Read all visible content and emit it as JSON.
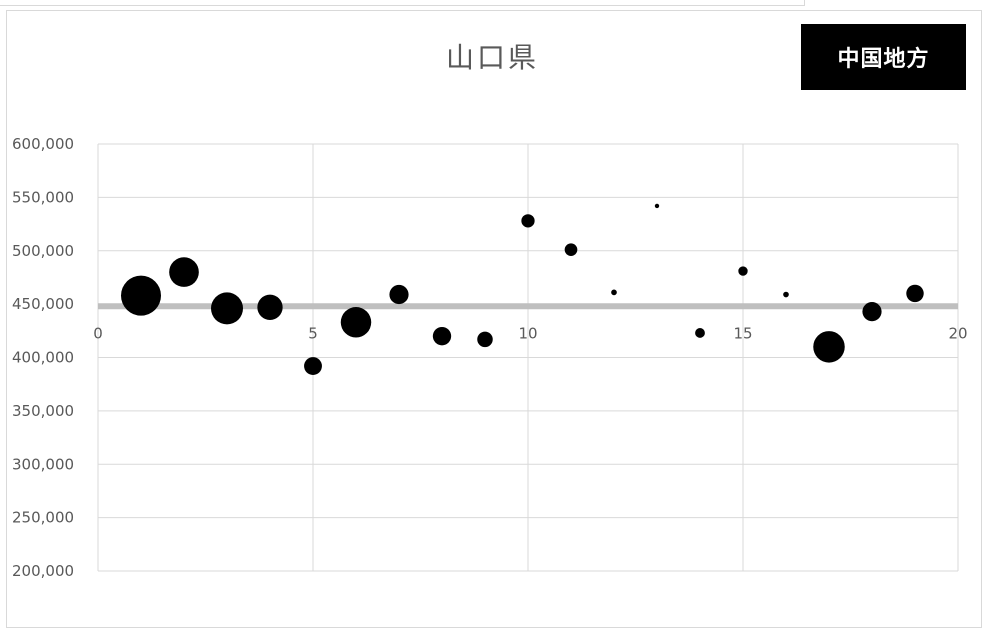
{
  "chart_data": {
    "type": "scatter",
    "variant": "bubble",
    "title": "山口県",
    "xlabel": "",
    "ylabel": "",
    "xlim": [
      0,
      20
    ],
    "ylim": [
      200000,
      600000
    ],
    "x_ticks": [
      0,
      5,
      10,
      15,
      20
    ],
    "x_tick_labels": [
      "0",
      "5",
      "10",
      "15",
      "20"
    ],
    "y_ticks": [
      200000,
      250000,
      300000,
      350000,
      400000,
      450000,
      500000,
      550000,
      600000
    ],
    "y_tick_labels": [
      "200,000",
      "250,000",
      "300,000",
      "350,000",
      "400,000",
      "450,000",
      "500,000",
      "550,000",
      "600,000"
    ],
    "grid": true,
    "reference_line": {
      "y": 448000,
      "color": "#bfbfbf"
    },
    "marker_color": "#000000",
    "series": [
      {
        "points": [
          {
            "x": 1,
            "y": 458000,
            "size": 100
          },
          {
            "x": 2,
            "y": 480000,
            "size": 55
          },
          {
            "x": 3,
            "y": 446000,
            "size": 64
          },
          {
            "x": 4,
            "y": 447000,
            "size": 40
          },
          {
            "x": 5,
            "y": 392000,
            "size": 20
          },
          {
            "x": 6,
            "y": 433000,
            "size": 58
          },
          {
            "x": 7,
            "y": 459000,
            "size": 23
          },
          {
            "x": 8,
            "y": 420000,
            "size": 21
          },
          {
            "x": 9,
            "y": 417000,
            "size": 15
          },
          {
            "x": 10,
            "y": 528000,
            "size": 11
          },
          {
            "x": 11,
            "y": 501000,
            "size": 10
          },
          {
            "x": 12,
            "y": 461000,
            "size": 2
          },
          {
            "x": 13,
            "y": 542000,
            "size": 1.2
          },
          {
            "x": 14,
            "y": 423000,
            "size": 6
          },
          {
            "x": 15,
            "y": 481000,
            "size": 5.5
          },
          {
            "x": 16,
            "y": 459000,
            "size": 2
          },
          {
            "x": 17,
            "y": 410000,
            "size": 62
          },
          {
            "x": 18,
            "y": 443000,
            "size": 23
          },
          {
            "x": 19,
            "y": 460000,
            "size": 19
          }
        ]
      }
    ]
  },
  "badge": {
    "label": "中国地方"
  }
}
